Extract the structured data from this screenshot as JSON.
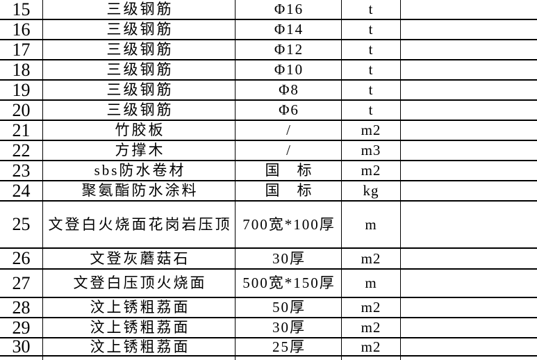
{
  "page": {
    "background_color": "#ffffff",
    "grid_line_color": "#000000",
    "text_color": "#000000"
  },
  "table": {
    "visible_row_range": "15-30",
    "rows": [
      {
        "no": "15",
        "material": "三级钢筋",
        "spec": "Φ16",
        "unit": "t"
      },
      {
        "no": "16",
        "material": "三级钢筋",
        "spec": "Φ14",
        "unit": "t"
      },
      {
        "no": "17",
        "material": "三级钢筋",
        "spec": "Φ12",
        "unit": "t"
      },
      {
        "no": "18",
        "material": "三级钢筋",
        "spec": "Φ10",
        "unit": "t"
      },
      {
        "no": "19",
        "material": "三级钢筋",
        "spec": "Φ8",
        "unit": "t"
      },
      {
        "no": "20",
        "material": "三级钢筋",
        "spec": "Φ6",
        "unit": "t"
      },
      {
        "no": "21",
        "material": "竹胶板",
        "spec": "/",
        "unit": "m2"
      },
      {
        "no": "22",
        "material": "方撑木",
        "spec": "/",
        "unit": "m3"
      },
      {
        "no": "23",
        "material": "sbs防水卷材",
        "spec": "国　标",
        "unit": "m2"
      },
      {
        "no": "24",
        "material": "聚氨酯防水涂料",
        "spec": "国　标",
        "unit": "kg"
      },
      {
        "no": "25",
        "material": "文登白火烧面花岗岩压顶",
        "spec": "700宽*100厚",
        "unit": "m"
      },
      {
        "no": "26",
        "material": "文登灰蘑菇石",
        "spec": "30厚",
        "unit": "m2"
      },
      {
        "no": "27",
        "material": "文登白压顶火烧面",
        "spec": "500宽*150厚",
        "unit": "m"
      },
      {
        "no": "28",
        "material": "汶上锈粗荔面",
        "spec": "50厚",
        "unit": "m2"
      },
      {
        "no": "29",
        "material": "汶上锈粗荔面",
        "spec": "30厚",
        "unit": "m2"
      },
      {
        "no": "30",
        "material": "汶上锈粗荔面",
        "spec": "25厚",
        "unit": "m2"
      }
    ]
  }
}
